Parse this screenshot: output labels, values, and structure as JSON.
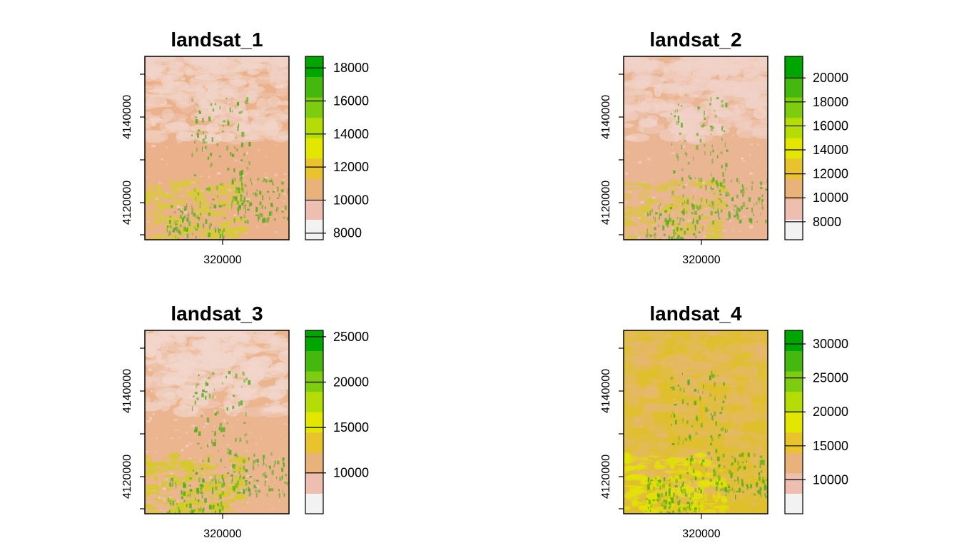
{
  "chart_data": [
    {
      "type": "heatmap",
      "title": "landsat_1",
      "x_ticks": [
        "320000"
      ],
      "y_ticks": [
        "4140000",
        "4120000"
      ],
      "legend": {
        "range": [
          7600,
          18700
        ],
        "ticks": [
          8000,
          10000,
          12000,
          14000,
          16000,
          18000
        ],
        "tick_labels": [
          "8000",
          "10000",
          "12000",
          "14000",
          "16000",
          "18000"
        ],
        "colors": [
          "#f2f2f2",
          "#eebeb0",
          "#e8b27a",
          "#e8c32e",
          "#e3e600",
          "#b6dc08",
          "#7dcc10",
          "#45b810",
          "#00a600"
        ]
      },
      "raster_palette": {
        "background": "#eab18a",
        "light": "#f1d4c9",
        "yellow": "#d7cc38",
        "green": "#57ad1a"
      }
    },
    {
      "type": "heatmap",
      "title": "landsat_2",
      "x_ticks": [
        "320000"
      ],
      "y_ticks": [
        "4140000",
        "4120000"
      ],
      "legend": {
        "range": [
          6500,
          21800
        ],
        "ticks": [
          8000,
          10000,
          12000,
          14000,
          16000,
          18000,
          20000
        ],
        "tick_labels": [
          "8000",
          "10000",
          "12000",
          "14000",
          "16000",
          "18000",
          "20000"
        ],
        "colors": [
          "#f2f2f2",
          "#eebeb0",
          "#e8b27a",
          "#e8c32e",
          "#e3e600",
          "#b6dc08",
          "#7dcc10",
          "#45b810",
          "#00a600"
        ]
      },
      "raster_palette": {
        "background": "#eab593",
        "light": "#f1d2c8",
        "yellow": "#d9c63e",
        "green": "#5aae1e"
      }
    },
    {
      "type": "heatmap",
      "title": "landsat_3",
      "x_ticks": [
        "320000"
      ],
      "y_ticks": [
        "4140000",
        "4120000"
      ],
      "legend": {
        "range": [
          5500,
          25700
        ],
        "ticks": [
          10000,
          15000,
          20000,
          25000
        ],
        "tick_labels": [
          "10000",
          "15000",
          "20000",
          "25000"
        ],
        "colors": [
          "#f2f2f2",
          "#eebeb0",
          "#e8b27a",
          "#e8c32e",
          "#e3e600",
          "#b6dc08",
          "#7dcc10",
          "#45b810",
          "#00a600"
        ]
      },
      "raster_palette": {
        "background": "#eab58f",
        "light": "#f2d6cc",
        "yellow": "#d3cc22",
        "green": "#52ae1a"
      }
    },
    {
      "type": "heatmap",
      "title": "landsat_4",
      "x_ticks": [
        "320000"
      ],
      "y_ticks": [
        "4140000",
        "4120000"
      ],
      "legend": {
        "range": [
          5000,
          32000
        ],
        "ticks": [
          10000,
          15000,
          20000,
          25000,
          30000
        ],
        "tick_labels": [
          "10000",
          "15000",
          "20000",
          "25000",
          "30000"
        ],
        "colors": [
          "#f2f2f2",
          "#eebeb0",
          "#e8b27a",
          "#e8c32e",
          "#e3e600",
          "#b6dc08",
          "#7dcc10",
          "#45b810",
          "#00a600"
        ]
      },
      "raster_palette": {
        "background": "#dfc02c",
        "light": "#eab48a",
        "yellow": "#e3e600",
        "green": "#53ae14"
      }
    }
  ]
}
